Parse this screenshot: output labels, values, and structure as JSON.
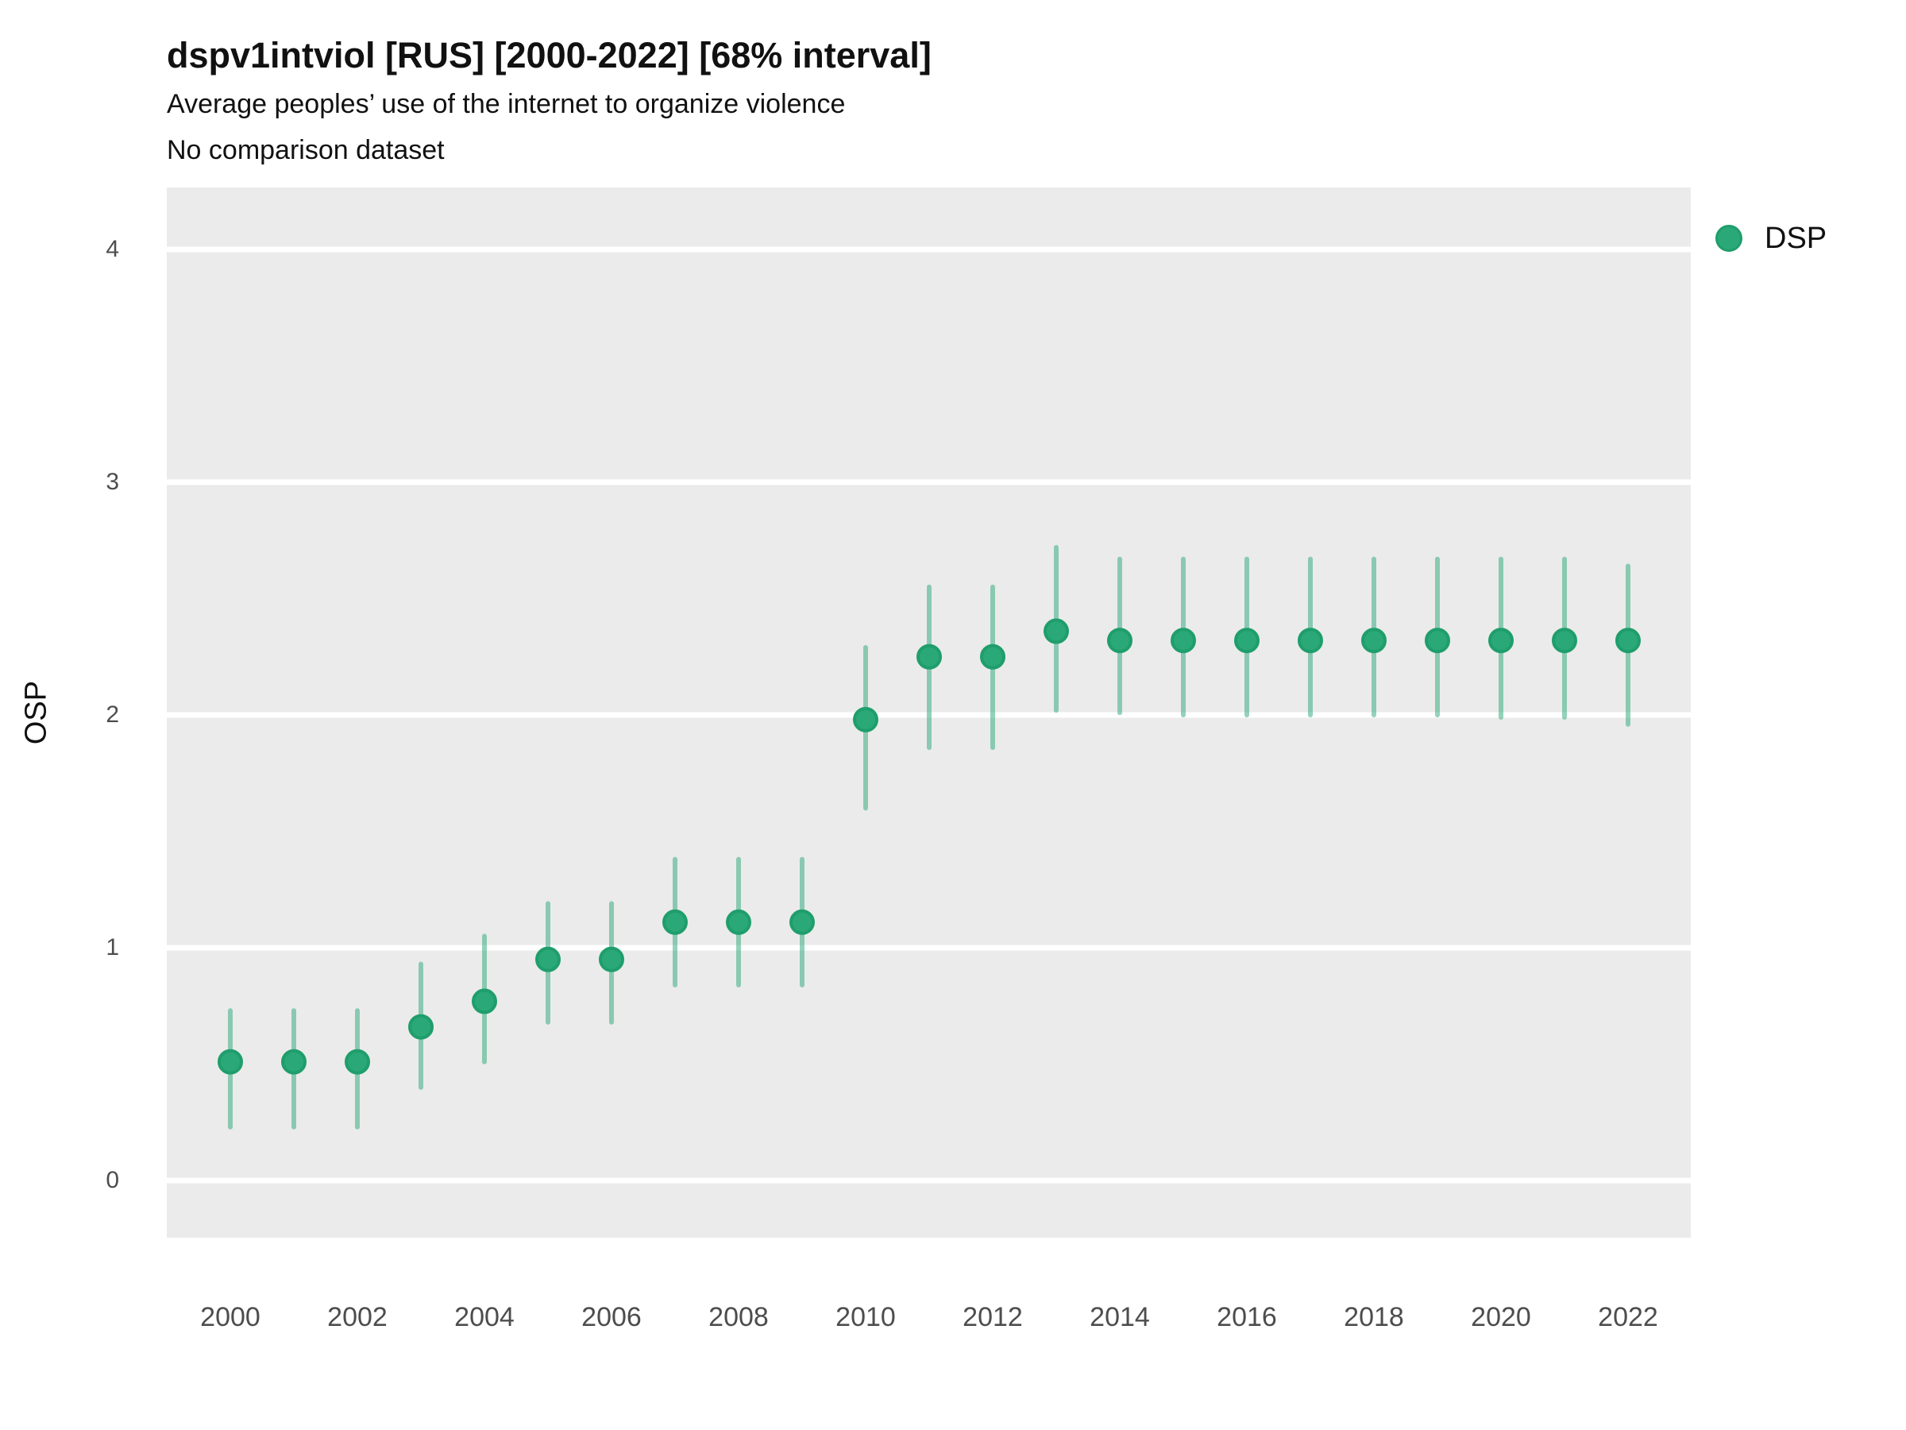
{
  "header": {
    "title": "dspv1intviol [RUS] [2000-2022] [68% interval]",
    "subtitle": "Average peoples’ use of the internet to organize violence",
    "note": "No comparison dataset"
  },
  "legend": {
    "label": "DSP",
    "dot_color": "#2aa878",
    "dot_edge_color": "#1f9e6c",
    "position": "right"
  },
  "colors": {
    "panel_background": "#ebebeb",
    "gridline": "#ffffff",
    "point_fill": "#2aa878",
    "point_edge": "#1f9e6c",
    "interval_line": "rgba(42,168,120,0.5)",
    "text": "#111111",
    "tick_text": "#4d4d4d"
  },
  "chart_data": {
    "type": "scatter",
    "subtype": "pointrange",
    "title": "dspv1intviol [RUS] [2000-2022] [68% interval]",
    "subtitle": "Average peoples’ use of the internet to organize violence",
    "note": "No comparison dataset",
    "xlabel": "",
    "ylabel": "OSP",
    "interval_level": "68%",
    "x": [
      2000,
      2001,
      2002,
      2003,
      2004,
      2005,
      2006,
      2007,
      2008,
      2009,
      2010,
      2011,
      2012,
      2013,
      2014,
      2015,
      2016,
      2017,
      2018,
      2019,
      2020,
      2021,
      2022
    ],
    "series": [
      {
        "name": "DSP",
        "est": [
          0.51,
          0.51,
          0.51,
          0.66,
          0.77,
          0.95,
          0.95,
          1.11,
          1.11,
          1.11,
          1.98,
          2.25,
          2.25,
          2.36,
          2.32,
          2.32,
          2.32,
          2.32,
          2.32,
          2.32,
          2.32,
          2.32,
          2.32
        ],
        "lo": [
          0.23,
          0.23,
          0.23,
          0.4,
          0.51,
          0.68,
          0.68,
          0.84,
          0.84,
          0.84,
          1.6,
          1.86,
          1.86,
          2.02,
          2.01,
          2.0,
          2.0,
          2.0,
          2.0,
          2.0,
          1.99,
          1.99,
          1.96
        ],
        "hi": [
          0.73,
          0.73,
          0.73,
          0.93,
          1.05,
          1.19,
          1.19,
          1.38,
          1.38,
          1.38,
          2.29,
          2.55,
          2.55,
          2.72,
          2.67,
          2.67,
          2.67,
          2.67,
          2.67,
          2.67,
          2.67,
          2.67,
          2.64
        ]
      }
    ],
    "y_ticks": [
      4,
      3,
      2,
      1,
      0
    ],
    "x_ticks": [
      2000,
      2002,
      2004,
      2006,
      2008,
      2010,
      2012,
      2014,
      2016,
      2018,
      2020,
      2022
    ],
    "ylim": [
      -0.25,
      4.27
    ],
    "grid": "major-horizontal-only",
    "legend_position": "right"
  }
}
